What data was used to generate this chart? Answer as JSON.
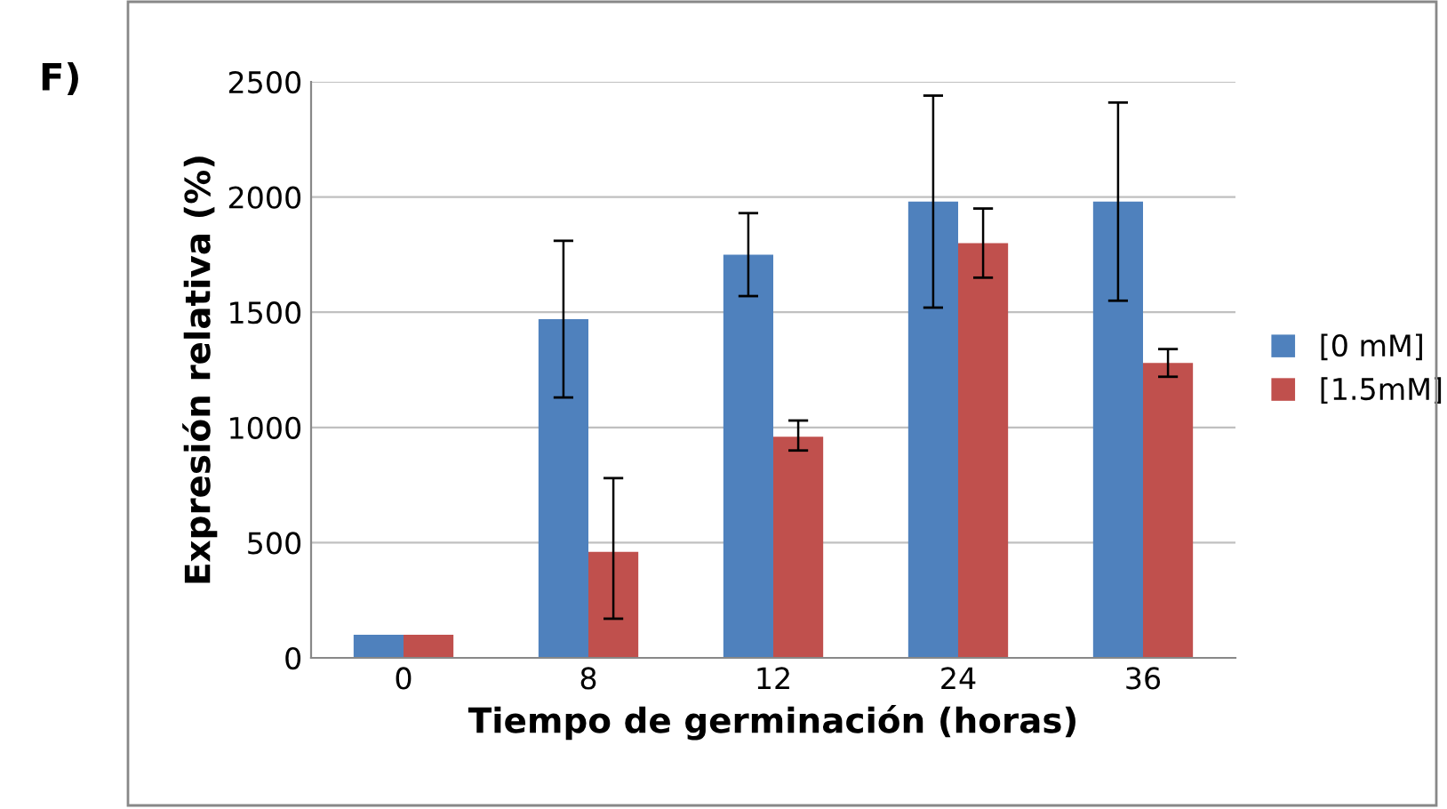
{
  "chart_data": {
    "type": "bar",
    "xlabel": "Tiempo de germinación (horas)",
    "ylabel": "Expresión relativa (%)",
    "annotations": [
      "F)"
    ],
    "categories": [
      "0",
      "8",
      "12",
      "24",
      "36"
    ],
    "series": [
      {
        "name": "[0 mM]",
        "color": "#4f81bd",
        "values": [
          100,
          1470,
          1750,
          1980,
          1980
        ],
        "errors": [
          null,
          [
            1130,
            1810
          ],
          [
            1570,
            1930
          ],
          [
            1520,
            2440
          ],
          [
            1550,
            2410
          ]
        ]
      },
      {
        "name": "[1.5mM]",
        "color": "#c0504d",
        "values": [
          100,
          460,
          960,
          1800,
          1280
        ],
        "errors": [
          null,
          [
            170,
            780
          ],
          [
            900,
            1030
          ],
          [
            1650,
            1950
          ],
          [
            1220,
            1340
          ]
        ]
      }
    ],
    "ylim": [
      0,
      2500
    ],
    "yticks": [
      0,
      500,
      1000,
      1500,
      2000,
      2500
    ],
    "grid": "y",
    "legend": "right"
  }
}
